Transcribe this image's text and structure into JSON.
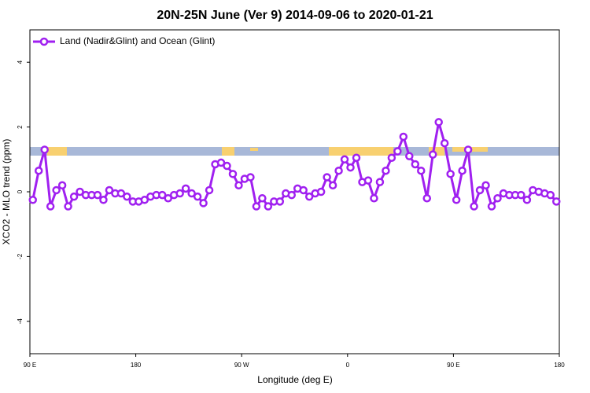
{
  "chart_data": {
    "type": "line",
    "title": "20N-25N June (Ver 9)   2014-09-06 to 2020-01-21",
    "xlabel": "Longitude (deg E)",
    "ylabel": "XCO2 - MLO trend (ppm)",
    "xlim": [
      90,
      540
    ],
    "ylim": [
      -5,
      5
    ],
    "xticks": [
      {
        "value": 90,
        "label": "90 E"
      },
      180,
      {
        "value": 270,
        "label": "90 W"
      },
      {
        "value": 360,
        "label": "0"
      },
      {
        "value": 450,
        "label": "90 E"
      },
      {
        "value": 540,
        "label": "180"
      }
    ],
    "yticks": [
      -4,
      -2,
      0,
      2,
      4
    ],
    "legend": "top-left",
    "x": [
      92.5,
      97.5,
      102.5,
      107.5,
      112.5,
      117.5,
      122.5,
      127.5,
      132.5,
      137.5,
      142.5,
      147.5,
      152.5,
      157.5,
      162.5,
      167.5,
      172.5,
      177.5,
      182.5,
      187.5,
      192.5,
      197.5,
      202.5,
      207.5,
      212.5,
      217.5,
      222.5,
      227.5,
      232.5,
      237.5,
      242.5,
      247.5,
      252.5,
      257.5,
      262.5,
      267.5,
      272.5,
      277.5,
      282.5,
      287.5,
      292.5,
      297.5,
      302.5,
      307.5,
      312.5,
      317.5,
      322.5,
      327.5,
      332.5,
      337.5,
      342.5,
      347.5,
      352.5,
      357.5,
      362.5,
      367.5,
      372.5,
      377.5,
      382.5,
      387.5,
      392.5,
      397.5,
      402.5,
      407.5,
      412.5,
      417.5,
      422.5,
      427.5,
      432.5,
      437.5,
      442.5,
      447.5,
      452.5,
      457.5,
      462.5,
      467.5,
      472.5,
      477.5,
      482.5,
      487.5,
      492.5,
      497.5,
      502.5,
      507.5,
      512.5,
      517.5,
      522.5,
      527.5,
      532.5,
      537.5
    ],
    "series": [
      {
        "name": "Land (Nadir&Glint) and Ocean (Glint)",
        "color": "#a020f0",
        "values": [
          -0.25,
          0.65,
          1.3,
          -0.45,
          0.05,
          0.2,
          -0.45,
          -0.15,
          0,
          -0.1,
          -0.1,
          -0.1,
          -0.25,
          0.05,
          -0.05,
          -0.05,
          -0.15,
          -0.3,
          -0.3,
          -0.25,
          -0.15,
          -0.1,
          -0.1,
          -0.2,
          -0.1,
          -0.05,
          0.1,
          -0.05,
          -0.15,
          -0.35,
          0.05,
          0.85,
          0.9,
          0.8,
          0.55,
          0.2,
          0.4,
          0.45,
          -0.45,
          -0.2,
          -0.45,
          -0.3,
          -0.3,
          -0.05,
          -0.1,
          0.1,
          0.05,
          -0.15,
          -0.05,
          0,
          0.45,
          0.2,
          0.65,
          1.0,
          0.75,
          1.05,
          0.3,
          0.35,
          -0.2,
          0.3,
          0.65,
          1.05,
          1.25,
          1.7,
          1.1,
          0.85,
          0.65,
          -0.2,
          1.15,
          2.15,
          1.5,
          0.55,
          -0.25,
          0.65,
          1.3,
          -0.45,
          0.05,
          0.2,
          -0.45,
          -0.2,
          -0.05,
          -0.1,
          -0.1,
          -0.1,
          -0.25,
          0.05,
          0,
          -0.05,
          -0.1,
          -0.3
        ]
      }
    ]
  }
}
